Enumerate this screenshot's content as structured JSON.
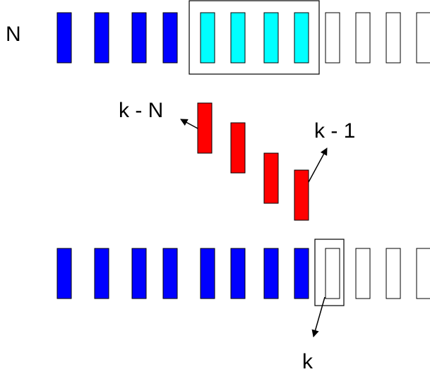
{
  "diagram": {
    "labels": {
      "n": "N",
      "k_minus_n": "k - N",
      "k_minus_1": "k - 1",
      "k": "k"
    },
    "top_row": {
      "states": [
        "past",
        "past",
        "past",
        "past",
        "window",
        "window",
        "window",
        "window",
        "future",
        "future",
        "future",
        "future"
      ]
    },
    "middle_row": {
      "count": 4
    },
    "bottom_row": {
      "states": [
        "past",
        "past",
        "past",
        "past",
        "past",
        "past",
        "past",
        "past",
        "future",
        "future",
        "future",
        "future"
      ],
      "highlighted_index": 8
    },
    "colors": {
      "past": "#0000FF",
      "window": "#00FFFF",
      "future": "#FFFFFF",
      "middle": "#FF0000",
      "stroke": "#000000"
    }
  }
}
